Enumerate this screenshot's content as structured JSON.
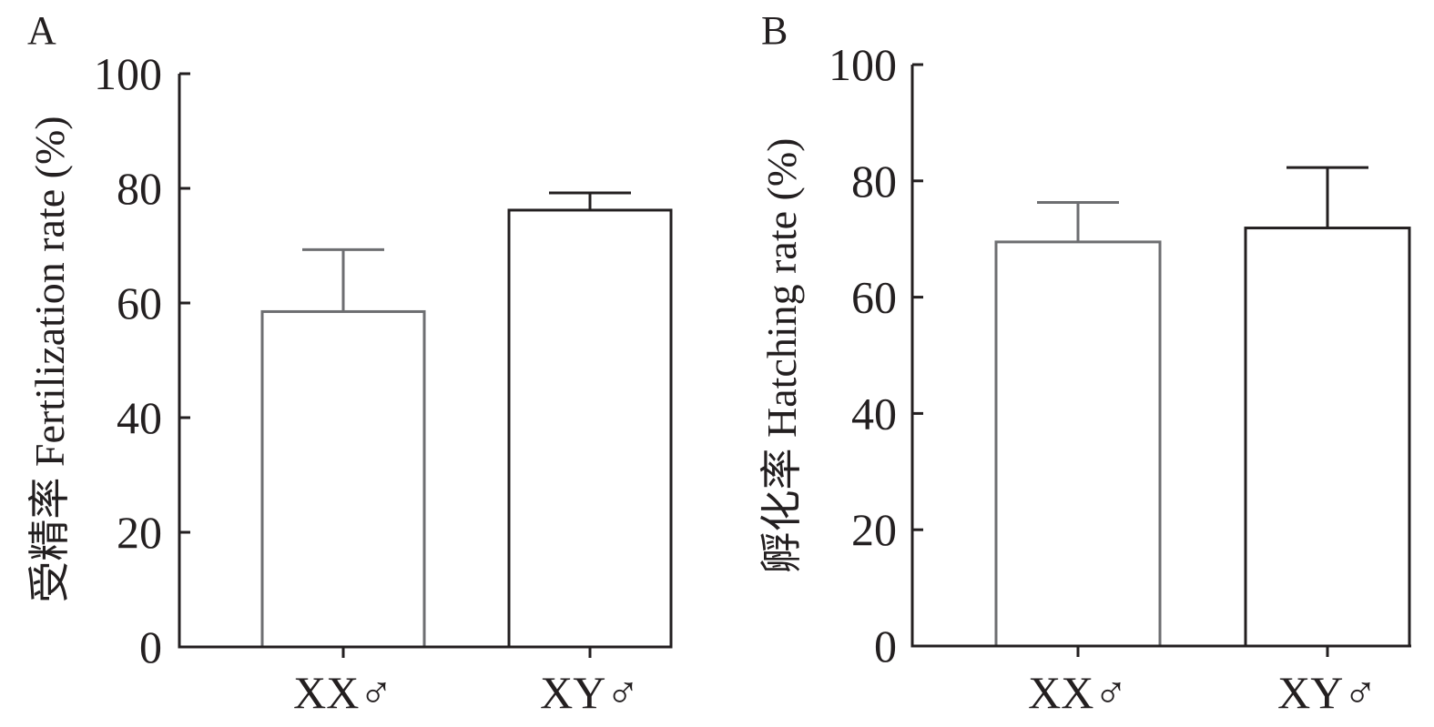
{
  "chart_data": [
    {
      "panel": "A",
      "type": "bar",
      "ylabel": "受精率 Fertilization rate (%)",
      "xlabel": "",
      "ylim": [
        0,
        100
      ],
      "yticks": [
        "0",
        "20",
        "40",
        "60",
        "80",
        "100"
      ],
      "categories": [
        "XX♂",
        "XY♂"
      ],
      "values": [
        58.5,
        76.2
      ],
      "errors": [
        10.8,
        3.0
      ],
      "bar_colors": [
        "#6d6e71",
        "#231f20"
      ]
    },
    {
      "panel": "B",
      "type": "bar",
      "ylabel": "孵化率 Hatching rate (%)",
      "xlabel": "",
      "ylim": [
        0,
        100
      ],
      "yticks": [
        "0",
        "20",
        "40",
        "60",
        "80",
        "100"
      ],
      "categories": [
        "XX♂",
        "XY♂"
      ],
      "values": [
        69.5,
        71.9
      ],
      "errors": [
        6.8,
        10.4
      ],
      "bar_colors": [
        "#6d6e71",
        "#231f20"
      ]
    }
  ]
}
